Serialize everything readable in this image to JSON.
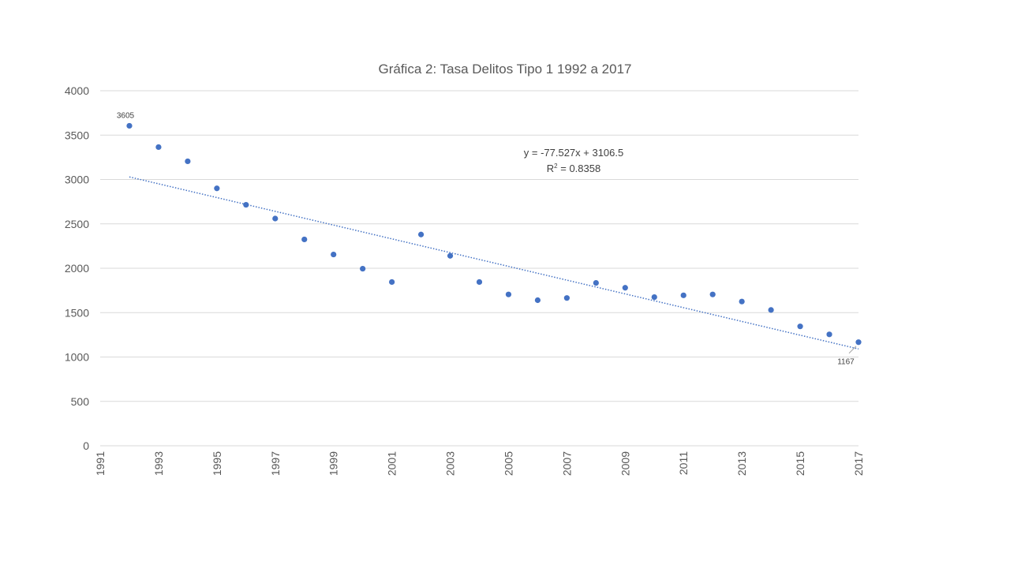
{
  "chart_data": {
    "type": "scatter",
    "title": "Gráfica 2: Tasa Delitos Tipo 1 1992 a 2017",
    "xlabel": "",
    "ylabel": "",
    "xlim": [
      1991,
      2017
    ],
    "ylim": [
      0,
      4000
    ],
    "x_ticks": [
      "1991",
      "1993",
      "1995",
      "1997",
      "1999",
      "2001",
      "2003",
      "2005",
      "2007",
      "2009",
      "2011",
      "2013",
      "2015",
      "2017"
    ],
    "y_ticks": [
      "0",
      "500",
      "1000",
      "1500",
      "2000",
      "2500",
      "3000",
      "3500",
      "4000"
    ],
    "grid": true,
    "legend": "none",
    "series": [
      {
        "color": "#4472C4",
        "x": [
          1992,
          1993,
          1994,
          1995,
          1996,
          1997,
          1998,
          1999,
          2000,
          2001,
          2002,
          2003,
          2004,
          2005,
          2006,
          2007,
          2008,
          2009,
          2010,
          2011,
          2012,
          2013,
          2014,
          2015,
          2016,
          2017
        ],
        "y": [
          3605,
          3365,
          3205,
          2900,
          2715,
          2560,
          2325,
          2155,
          1995,
          1845,
          2380,
          2140,
          1845,
          1705,
          1640,
          1665,
          1835,
          1780,
          1675,
          1695,
          1705,
          1625,
          1530,
          1345,
          1255,
          1167
        ]
      }
    ],
    "data_labels": [
      {
        "x": 1992,
        "y": 3605,
        "text": "3605"
      },
      {
        "x": 2017,
        "y": 1167,
        "text": "1167"
      }
    ],
    "trendline": {
      "type": "linear",
      "slope": -77.527,
      "intercept": 3106.5,
      "equation_text": "y = -77.527x + 3106.5",
      "r2_prefix": "R",
      "r2_sup": "2",
      "r2_suffix": " = 0.8358",
      "color": "#4472C4"
    },
    "colors": {
      "gridline": "#D9D9D9",
      "axis_text": "#595959",
      "title": "#595959"
    }
  }
}
